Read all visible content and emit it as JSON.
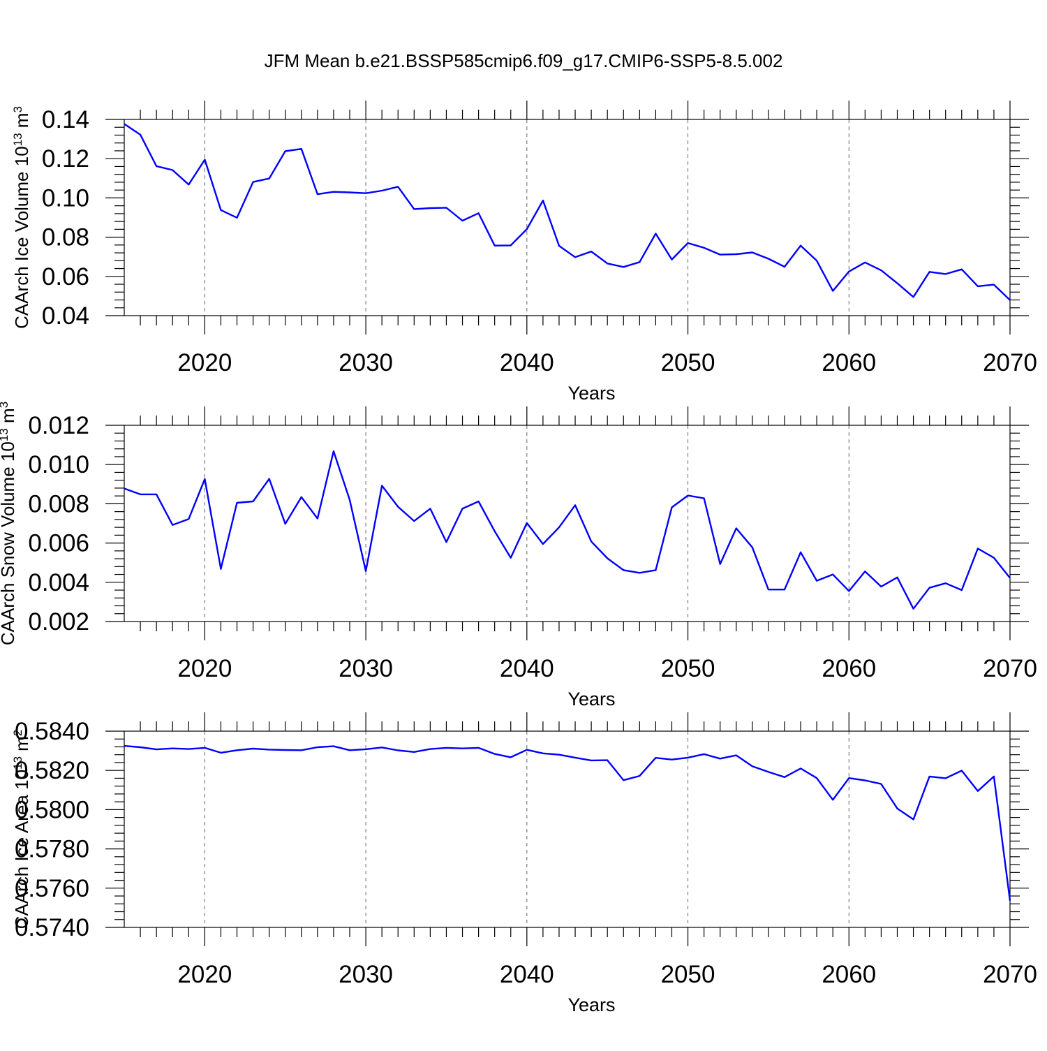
{
  "title": "JFM Mean b.e21.BSSP585cmip6.f09_g17.CMIP6-SSP5-8.5.002",
  "line_color": "#0000ff",
  "chart_data": [
    {
      "type": "line",
      "xlabel": "Years",
      "ylabel": "CAArch Ice Volume 10",
      "ylabel_sup": "13",
      "ylabel_unit": " m",
      "ylabel_unit_sup": "3",
      "xlim": [
        2015,
        2070
      ],
      "ylim": [
        0.04,
        0.14
      ],
      "xticks": [
        2020,
        2030,
        2040,
        2050,
        2060,
        2070
      ],
      "yticks": [
        0.04,
        0.06,
        0.08,
        0.1,
        0.12,
        0.14
      ],
      "ytick_labels": [
        "0.04",
        "0.06",
        "0.08",
        "0.10",
        "0.12",
        "0.14"
      ],
      "grid": "dashed vertical lines at major x ticks",
      "x_start": 2015,
      "values": [
        0.1377,
        0.1322,
        0.1162,
        0.1142,
        0.1068,
        0.1195,
        0.0938,
        0.0899,
        0.1081,
        0.1099,
        0.1238,
        0.125,
        0.1019,
        0.1031,
        0.1028,
        0.1024,
        0.1037,
        0.1057,
        0.0943,
        0.0948,
        0.095,
        0.0884,
        0.0922,
        0.0757,
        0.0758,
        0.0841,
        0.0987,
        0.0756,
        0.0698,
        0.0727,
        0.0666,
        0.0648,
        0.0673,
        0.0818,
        0.0686,
        0.077,
        0.0746,
        0.0711,
        0.0713,
        0.0722,
        0.069,
        0.0649,
        0.0757,
        0.068,
        0.0526,
        0.0625,
        0.0671,
        0.0631,
        0.0565,
        0.0495,
        0.0623,
        0.0612,
        0.0636,
        0.055,
        0.0558,
        0.0479
      ]
    },
    {
      "type": "line",
      "xlabel": "Years",
      "ylabel": "CAArch Snow Volume 10",
      "ylabel_sup": "13",
      "ylabel_unit": " m",
      "ylabel_unit_sup": "3",
      "xlim": [
        2015,
        2070
      ],
      "ylim": [
        0.002,
        0.012
      ],
      "xticks": [
        2020,
        2030,
        2040,
        2050,
        2060,
        2070
      ],
      "yticks": [
        0.002,
        0.004,
        0.006,
        0.008,
        0.01,
        0.012
      ],
      "ytick_labels": [
        "0.002",
        "0.004",
        "0.006",
        "0.008",
        "0.010",
        "0.012"
      ],
      "grid": "dashed vertical lines at major x ticks",
      "x_start": 2015,
      "values": [
        0.00878,
        0.00848,
        0.00848,
        0.00692,
        0.00722,
        0.00926,
        0.00468,
        0.00805,
        0.00812,
        0.00927,
        0.00698,
        0.00834,
        0.00725,
        0.01068,
        0.0082,
        0.00457,
        0.00892,
        0.00785,
        0.00712,
        0.00775,
        0.00605,
        0.00775,
        0.00812,
        0.0066,
        0.00525,
        0.00702,
        0.00595,
        0.0068,
        0.00793,
        0.00608,
        0.00522,
        0.00462,
        0.00448,
        0.00462,
        0.00782,
        0.00842,
        0.00828,
        0.00493,
        0.00675,
        0.00578,
        0.00363,
        0.00363,
        0.00553,
        0.00408,
        0.0044,
        0.00355,
        0.00455,
        0.00378,
        0.00425,
        0.00265,
        0.00372,
        0.00395,
        0.0036,
        0.00572,
        0.00525,
        0.00422
      ]
    },
    {
      "type": "line",
      "xlabel": "Years",
      "ylabel": "CAArch Ice Area 10",
      "ylabel_sup": "13",
      "ylabel_unit": " m",
      "ylabel_unit_sup": "2",
      "xlim": [
        2015,
        2070
      ],
      "ylim": [
        0.574,
        0.584
      ],
      "xticks": [
        2020,
        2030,
        2040,
        2050,
        2060,
        2070
      ],
      "yticks": [
        0.574,
        0.576,
        0.578,
        0.58,
        0.582,
        0.584
      ],
      "ytick_labels": [
        "0.5740",
        "0.5760",
        "0.5780",
        "0.5800",
        "0.5820",
        "0.5840"
      ],
      "grid": "dashed vertical lines at major x ticks",
      "x_start": 2015,
      "values": [
        0.58325,
        0.58318,
        0.58307,
        0.58312,
        0.58309,
        0.58315,
        0.5829,
        0.58303,
        0.58311,
        0.58306,
        0.58304,
        0.58303,
        0.58318,
        0.58323,
        0.58303,
        0.58308,
        0.58317,
        0.58302,
        0.58294,
        0.58309,
        0.58315,
        0.58312,
        0.58315,
        0.58284,
        0.58267,
        0.58305,
        0.58287,
        0.5828,
        0.58265,
        0.58251,
        0.58252,
        0.5815,
        0.58172,
        0.58264,
        0.58255,
        0.58265,
        0.58283,
        0.5826,
        0.58277,
        0.58221,
        0.58192,
        0.58166,
        0.5821,
        0.58161,
        0.5805,
        0.58161,
        0.58149,
        0.58131,
        0.58006,
        0.5795,
        0.58169,
        0.5816,
        0.58199,
        0.58095,
        0.58169,
        0.57536
      ]
    }
  ]
}
